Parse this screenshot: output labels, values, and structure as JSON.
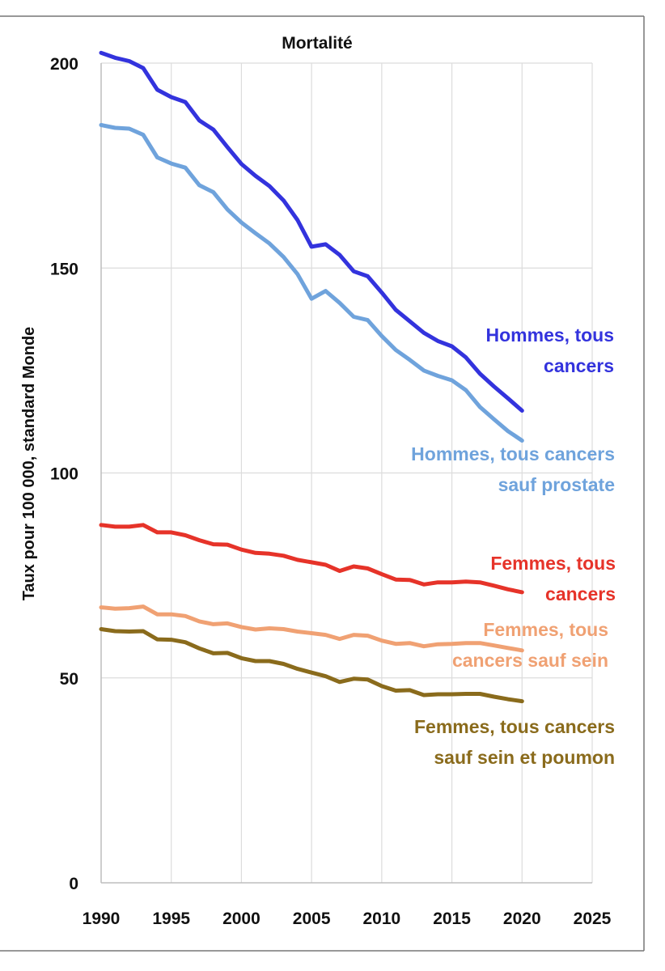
{
  "chart_data": {
    "type": "line",
    "title": "Mortalité",
    "xlabel": "",
    "ylabel": "Taux pour 100 000, standard Monde",
    "xlim": [
      1990,
      2025
    ],
    "ylim": [
      0,
      200
    ],
    "x_ticks": [
      1990,
      1995,
      2000,
      2005,
      2010,
      2015,
      2020,
      2025
    ],
    "y_ticks": [
      0,
      50,
      100,
      150,
      200
    ],
    "grid": true,
    "x": [
      1990,
      1991,
      1992,
      1993,
      1994,
      1995,
      1996,
      1997,
      1998,
      1999,
      2000,
      2001,
      2002,
      2003,
      2004,
      2005,
      2006,
      2007,
      2008,
      2009,
      2010,
      2011,
      2012,
      2013,
      2014,
      2015,
      2016,
      2017,
      2018,
      2019,
      2020
    ],
    "series": [
      {
        "name": "Hommes, tous cancers",
        "label_lines": [
          "Hommes, tous",
          "cancers"
        ],
        "color": "#3333dd",
        "values": [
          202.5,
          201.3,
          200.5,
          198.8,
          193.5,
          191.7,
          190.5,
          186,
          183.8,
          179.5,
          175.4,
          172.5,
          170,
          166.5,
          161.7,
          155.2,
          155.8,
          153.2,
          149.2,
          148,
          144,
          139.8,
          137,
          134.2,
          132.2,
          130.9,
          128.2,
          124.2,
          121.1,
          118.2,
          115.2
        ]
      },
      {
        "name": "Hommes, tous cancers sauf prostate",
        "label_lines": [
          "Hommes, tous cancers",
          "sauf prostate"
        ],
        "color": "#6fa3dc",
        "values": [
          184.9,
          184.2,
          184,
          182.5,
          177,
          175.5,
          174.5,
          170.2,
          168.5,
          164.3,
          161.1,
          158.5,
          156,
          152.7,
          148.5,
          142.5,
          144.4,
          141.5,
          138.1,
          137.3,
          133.4,
          130,
          127.6,
          125,
          123.7,
          122.6,
          120.2,
          116.1,
          113.1,
          110.2,
          107.9
        ]
      },
      {
        "name": "Femmes, tous cancers",
        "label_lines": [
          "Femmes, tous",
          "cancers"
        ],
        "color": "#e63329",
        "values": [
          87.3,
          86.9,
          86.9,
          87.3,
          85.5,
          85.5,
          84.8,
          83.6,
          82.6,
          82.5,
          81.3,
          80.5,
          80.3,
          79.8,
          78.8,
          78.2,
          77.6,
          76.1,
          77.2,
          76.7,
          75.3,
          74,
          73.9,
          72.8,
          73.3,
          73.3,
          73.5,
          73.3,
          72.5,
          71.6,
          70.9
        ]
      },
      {
        "name": "Femmes, tous cancers sauf sein",
        "label_lines": [
          "Femmes, tous",
          "cancers sauf sein"
        ],
        "color": "#f0a173",
        "values": [
          67.2,
          66.9,
          67,
          67.4,
          65.5,
          65.5,
          65.1,
          63.8,
          63.1,
          63.3,
          62.4,
          61.8,
          62.1,
          61.9,
          61.3,
          60.9,
          60.5,
          59.5,
          60.5,
          60.3,
          59.1,
          58.3,
          58.5,
          57.7,
          58.2,
          58.3,
          58.5,
          58.5,
          57.9,
          57.3,
          56.7
        ]
      },
      {
        "name": "Femmes, tous cancers sauf sein et poumon",
        "label_lines": [
          "Femmes, tous cancers",
          "sauf sein et poumon"
        ],
        "color": "#8a6b1c",
        "values": [
          61.9,
          61.4,
          61.3,
          61.4,
          59.4,
          59.3,
          58.7,
          57.2,
          56,
          56.1,
          54.8,
          54.1,
          54.1,
          53.4,
          52.2,
          51.3,
          50.4,
          49,
          49.8,
          49.6,
          48,
          46.9,
          47,
          45.8,
          46,
          46,
          46.1,
          46.1,
          45.4,
          44.8,
          44.3
        ]
      }
    ]
  }
}
